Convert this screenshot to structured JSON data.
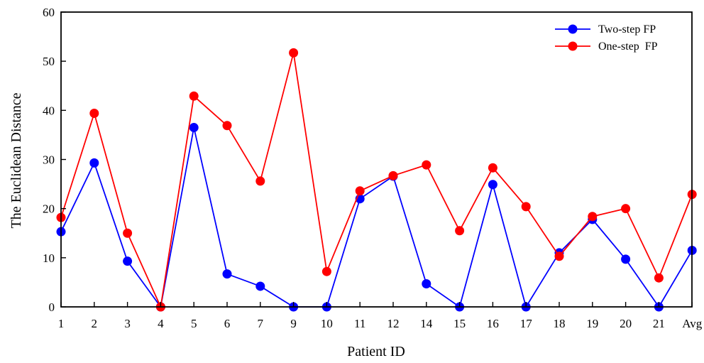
{
  "chart_data": {
    "type": "line",
    "xlabel": "Patient ID",
    "ylabel": "The Euclidean Distance",
    "categories": [
      "1",
      "2",
      "3",
      "4",
      "5",
      "6",
      "7",
      "9",
      "10",
      "11",
      "12",
      "14",
      "15",
      "16",
      "17",
      "18",
      "19",
      "20",
      "21",
      "Avg"
    ],
    "ylim": [
      0,
      60
    ],
    "yticks": [
      0,
      10,
      20,
      30,
      40,
      50,
      60
    ],
    "grid": false,
    "legend_position": "top-right",
    "series": [
      {
        "name": "Two-step FP",
        "color": "#0000ff",
        "values": [
          15.3,
          29.3,
          9.3,
          0,
          36.5,
          6.7,
          4.2,
          0,
          0,
          22.0,
          26.6,
          4.7,
          0,
          24.9,
          0,
          11.0,
          17.8,
          9.7,
          0,
          11.5
        ]
      },
      {
        "name": "One-step  FP",
        "color": "#ff0000",
        "values": [
          18.2,
          39.4,
          15.0,
          0,
          42.9,
          36.9,
          25.6,
          51.7,
          7.2,
          23.6,
          26.7,
          28.9,
          15.5,
          28.3,
          20.4,
          10.3,
          18.4,
          20.0,
          5.9,
          22.9
        ]
      }
    ]
  }
}
